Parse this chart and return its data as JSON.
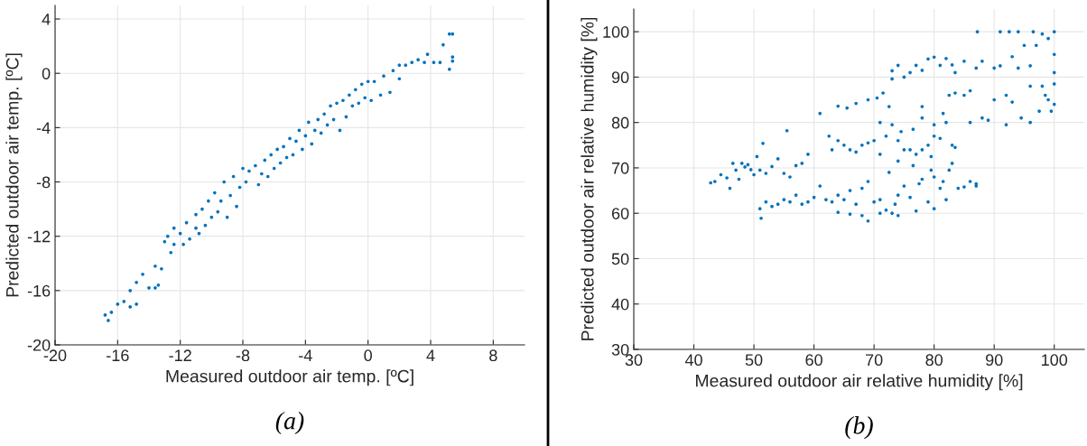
{
  "chart_data": [
    {
      "type": "scatter",
      "xlabel": "Measured outdoor air temp. [ºC]",
      "ylabel": "Predicted outdoor air temp. [ºC]",
      "annotations": [
        "(a)"
      ],
      "xlim": [
        -20,
        10
      ],
      "ylim": [
        -20,
        5
      ],
      "xticks": [
        -20,
        -16,
        -12,
        -8,
        -4,
        0,
        4,
        8
      ],
      "yticks": [
        -20,
        -16,
        -12,
        -8,
        -4,
        0,
        4
      ],
      "grid": true,
      "marker": "circle",
      "series": [
        {
          "color": "#0072bd",
          "x": [
            -16.6,
            -16.8,
            -16.4,
            -16.0,
            -15.6,
            -15.2,
            -15.2,
            -14.8,
            -14.8,
            -14.4,
            -14.0,
            -13.6,
            -13.6,
            -13.4,
            -13.2,
            -13.0,
            -12.8,
            -12.6,
            -12.4,
            -12.4,
            -12.0,
            -11.8,
            -11.6,
            -11.4,
            -11.0,
            -11.0,
            -10.8,
            -10.6,
            -10.4,
            -10.2,
            -10.0,
            -9.8,
            -9.6,
            -9.4,
            -9.2,
            -9.0,
            -8.8,
            -8.6,
            -8.4,
            -8.2,
            -8.0,
            -7.8,
            -7.6,
            -7.2,
            -7.0,
            -6.8,
            -6.6,
            -6.4,
            -6.2,
            -6.0,
            -5.8,
            -5.6,
            -5.4,
            -5.2,
            -5.0,
            -4.8,
            -4.6,
            -4.4,
            -4.2,
            -4.0,
            -3.8,
            -3.6,
            -3.4,
            -3.2,
            -3.0,
            -2.8,
            -2.6,
            -2.4,
            -2.2,
            -2.0,
            -1.8,
            -1.6,
            -1.4,
            -1.2,
            -1.0,
            -0.8,
            -0.6,
            -0.4,
            -0.2,
            0.0,
            0.2,
            0.4,
            0.8,
            1.0,
            1.4,
            1.6,
            2.0,
            2.0,
            2.4,
            2.8,
            3.2,
            3.6,
            3.8,
            4.2,
            4.6,
            4.8,
            5.2,
            5.4,
            5.2,
            5.4,
            5.4
          ],
          "values": [
            -18.2,
            -17.8,
            -17.6,
            -17.0,
            -16.8,
            -17.2,
            -16.0,
            -17.0,
            -15.4,
            -14.8,
            -15.8,
            -15.8,
            -14.2,
            -15.6,
            -14.4,
            -12.4,
            -12.0,
            -13.2,
            -12.6,
            -11.4,
            -11.8,
            -12.6,
            -11.0,
            -12.2,
            -11.4,
            -10.4,
            -11.8,
            -10.0,
            -11.2,
            -9.4,
            -10.6,
            -8.8,
            -10.2,
            -9.4,
            -8.0,
            -10.6,
            -9.0,
            -7.6,
            -9.8,
            -8.4,
            -7.0,
            -8.0,
            -7.2,
            -6.8,
            -8.2,
            -7.4,
            -6.4,
            -7.6,
            -6.0,
            -7.0,
            -5.6,
            -6.6,
            -5.4,
            -6.2,
            -4.8,
            -6.0,
            -5.0,
            -4.2,
            -5.6,
            -4.6,
            -3.6,
            -5.2,
            -4.2,
            -3.4,
            -4.4,
            -3.0,
            -3.8,
            -2.4,
            -3.4,
            -2.2,
            -4.2,
            -2.0,
            -3.2,
            -1.6,
            -2.4,
            -1.2,
            -2.2,
            -0.8,
            -1.8,
            -0.6,
            -2.0,
            -0.6,
            -1.6,
            -0.2,
            -1.4,
            0.2,
            -0.4,
            0.6,
            0.6,
            0.8,
            1.0,
            0.8,
            1.4,
            0.8,
            0.8,
            2.1,
            2.9,
            2.9,
            0.3,
            1.2,
            0.9
          ]
        }
      ]
    },
    {
      "type": "scatter",
      "xlabel": "Measured outdoor air relative humidity [%]",
      "ylabel": "Predicted outdoor air relative humidity [%]",
      "annotations": [
        "(b)"
      ],
      "xlim": [
        30,
        105
      ],
      "ylim": [
        30,
        105
      ],
      "xticks": [
        30,
        40,
        50,
        60,
        70,
        80,
        90,
        100
      ],
      "yticks": [
        30,
        40,
        50,
        60,
        70,
        80,
        90,
        100
      ],
      "grid": true,
      "marker": "circle",
      "series": [
        {
          "color": "#0072bd",
          "x": [
            42.8,
            43.5,
            44.5,
            45.5,
            46,
            46.5,
            47,
            47.5,
            48,
            48.5,
            49,
            49.5,
            50,
            50.5,
            51,
            51.5,
            52,
            53,
            54,
            55.5,
            55,
            56,
            57,
            58,
            59,
            61,
            62.5,
            64,
            65.5,
            67,
            69,
            70.5,
            71.5,
            72.5,
            73,
            73,
            74,
            75,
            76,
            77,
            78,
            79,
            80,
            81,
            82,
            83,
            83.5,
            85,
            85,
            86,
            86,
            87,
            87.2,
            88,
            88,
            89,
            90,
            90,
            91,
            91,
            92,
            92,
            92.5,
            93,
            93,
            94,
            94,
            94.5,
            95,
            96,
            96,
            96,
            96.5,
            97,
            97.5,
            98,
            98,
            98.5,
            99,
            99,
            99.5,
            100,
            100,
            100,
            100,
            100,
            63,
            64,
            65,
            66,
            67,
            68,
            69,
            70,
            71,
            71,
            72,
            73,
            74,
            74.5,
            75,
            76,
            76.5,
            77,
            78,
            78,
            79,
            79.5,
            80,
            80,
            81,
            81.5,
            82,
            82.5,
            83,
            83.5,
            78,
            83.5,
            51,
            51.2,
            52,
            53,
            54,
            55,
            56,
            57,
            58,
            59,
            60,
            61,
            62,
            63,
            64,
            64,
            65,
            66,
            66,
            67,
            68,
            68,
            69,
            69,
            70,
            71,
            71,
            72,
            73,
            73.5,
            74,
            74,
            75,
            76,
            76.5,
            77,
            77.5,
            78,
            79,
            79.5,
            80,
            80,
            81,
            81.5,
            82,
            82.5,
            83,
            84,
            85,
            86,
            87,
            87,
            72.5,
            74
          ],
          "values": [
            66.7,
            67,
            68.5,
            67.8,
            65.5,
            71,
            69.5,
            67.5,
            71,
            70.2,
            70.7,
            69.6,
            68.5,
            72.5,
            69.5,
            75.4,
            68.8,
            70.3,
            72,
            78.2,
            68.8,
            68,
            70.5,
            71,
            73,
            82,
            77,
            83.6,
            83.2,
            84.2,
            85,
            85.4,
            86.5,
            83.5,
            89.6,
            91.4,
            92.6,
            90,
            91,
            92.6,
            91.5,
            94,
            94.4,
            92.6,
            94.1,
            92.7,
            91,
            93.5,
            86,
            87,
            80,
            92,
            100,
            93.5,
            81,
            80.5,
            85,
            92,
            92.5,
            100,
            86,
            79.5,
            100,
            84.5,
            94.5,
            92,
            100,
            81,
            97,
            80,
            92.5,
            88,
            100,
            97,
            82.5,
            99.5,
            88,
            86,
            85,
            98.5,
            82.5,
            100,
            95,
            91,
            88.5,
            84,
            74,
            76,
            75,
            74,
            73.5,
            75,
            75.5,
            76,
            80,
            73,
            77,
            79.5,
            76,
            78,
            74,
            74,
            78.5,
            73,
            74,
            81,
            75,
            72.5,
            77,
            79.5,
            76.5,
            82,
            80,
            86,
            75,
            74.5,
            83.5,
            86.5,
            61,
            58.9,
            62.5,
            61.5,
            62,
            63,
            62.5,
            64,
            62,
            62.5,
            63.5,
            66,
            63,
            62.5,
            64,
            60.2,
            63,
            59.8,
            65,
            62,
            65.5,
            59.5,
            58.3,
            67,
            62.5,
            60,
            63,
            60.7,
            60,
            62,
            59.5,
            64,
            66,
            63.5,
            70.5,
            60.5,
            66.5,
            67.5,
            62.5,
            69.5,
            68,
            61,
            65.5,
            67,
            63,
            69.5,
            71,
            65.5,
            65.8,
            67,
            66,
            66.5,
            69,
            71.5
          ]
        }
      ]
    }
  ]
}
